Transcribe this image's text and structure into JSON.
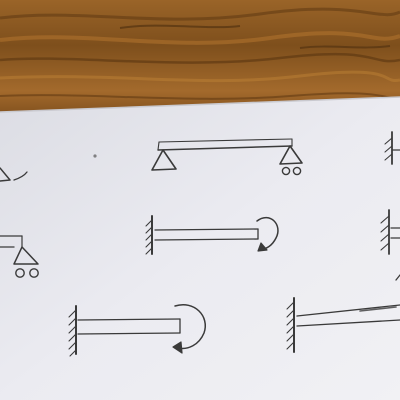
{
  "photo": {
    "table_color": "#8b5a22",
    "paper_color": "#e9e9ef",
    "ink_color": "#3a3a3a"
  },
  "sketches": [
    {
      "name": "simply-supported-beam",
      "supports": [
        "pin",
        "roller"
      ],
      "load": "none"
    },
    {
      "name": "cantilever-beam-with-moment",
      "supports": [
        "fixed-wall"
      ],
      "load": "end-moment"
    },
    {
      "name": "cantilever-beam-with-moment-lower",
      "supports": [
        "fixed-wall"
      ],
      "load": "end-moment"
    },
    {
      "name": "cantilever-beam-tapered",
      "supports": [
        "fixed-wall"
      ],
      "load": "none"
    },
    {
      "name": "partial-sketch-left-pin",
      "supports": [
        "pin"
      ],
      "load": "none"
    },
    {
      "name": "partial-sketch-left-roller",
      "supports": [
        "roller"
      ],
      "load": "none"
    },
    {
      "name": "partial-sketch-right-walls",
      "supports": [
        "fixed-wall"
      ],
      "load": "none"
    }
  ]
}
